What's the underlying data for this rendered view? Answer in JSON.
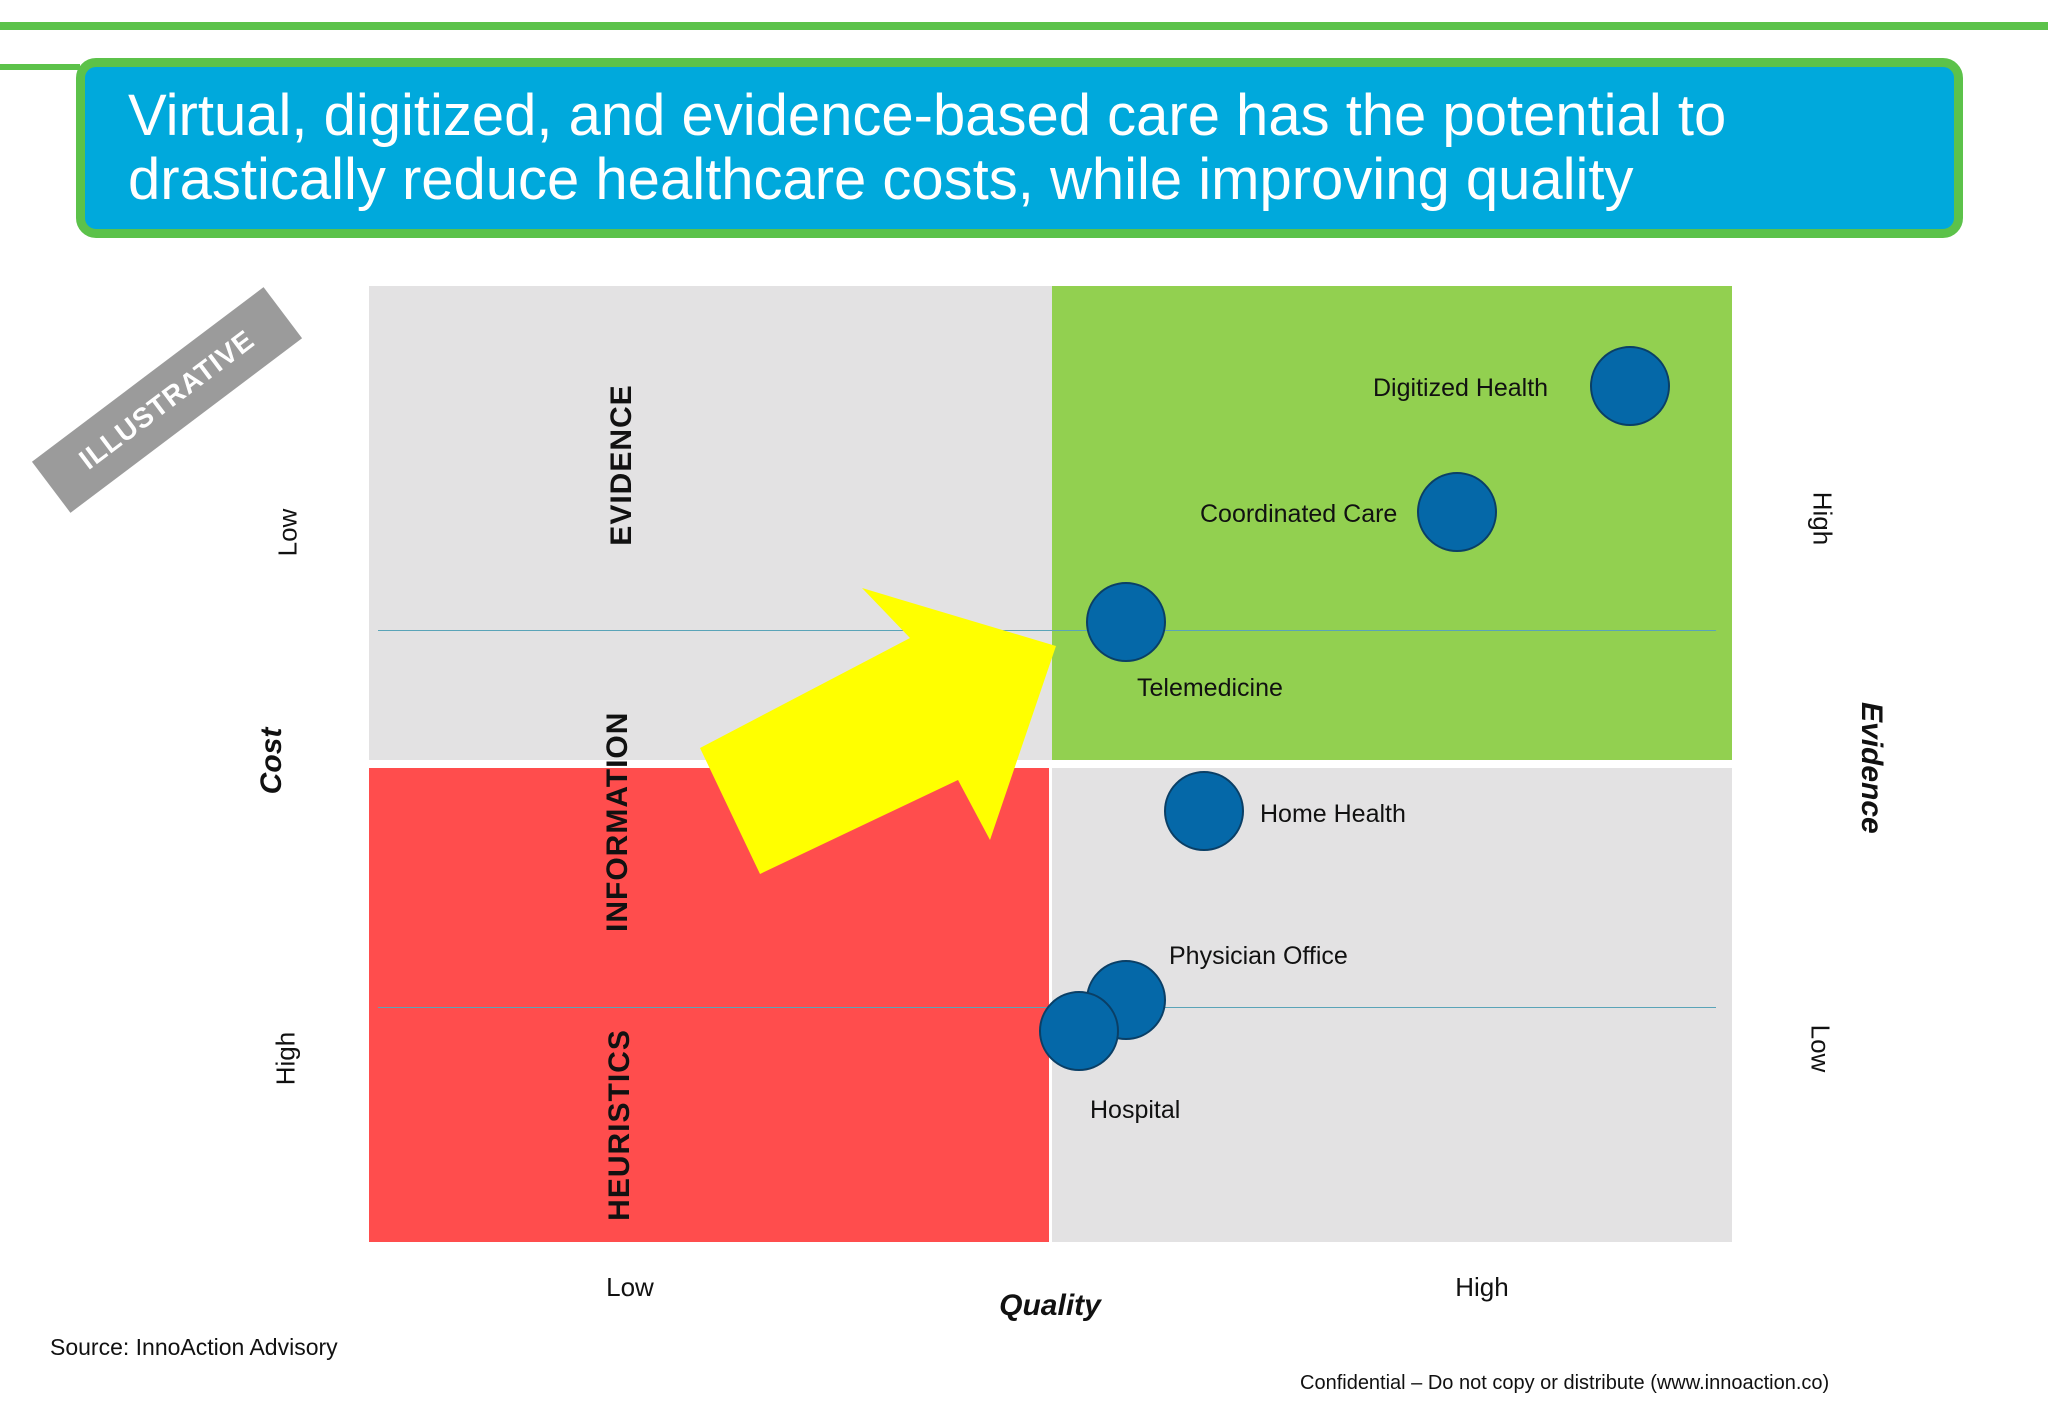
{
  "title": {
    "line1": "Virtual, digitized, and evidence-based care has the potential to",
    "line2": "drastically reduce healthcare costs, while improving quality"
  },
  "stamp": "ILLUSTRATIVE",
  "bands": {
    "evidence": "EVIDENCE",
    "information": "INFORMATION",
    "heuristics": "HEURISTICS"
  },
  "axes": {
    "left_title": "Cost",
    "left_top": "Low",
    "left_bottom": "High",
    "right_title": "Evidence",
    "right_top": "High",
    "right_bottom": "Low",
    "bottom_title": "Quality",
    "bottom_left": "Low",
    "bottom_right": "High"
  },
  "points": [
    {
      "label": "Digitized Health"
    },
    {
      "label": "Coordinated Care"
    },
    {
      "label": "Telemedicine"
    },
    {
      "label": "Home Health"
    },
    {
      "label": "Physician Office"
    },
    {
      "label": "Hospital"
    }
  ],
  "colors": {
    "banner": "#00a9dc",
    "frame_green": "#5cc24a",
    "quadrant_grey": "#e3e2e3",
    "quadrant_green": "#92d050",
    "quadrant_red": "#ff4d4d",
    "bubble": "#0568a8",
    "arrow": "#ffff00",
    "stamp": "#9b9b9b"
  },
  "footer": {
    "source": "Source: InnoAction Advisory",
    "confidential": "Confidential – Do not copy or distribute (www.innoaction.co)"
  }
}
